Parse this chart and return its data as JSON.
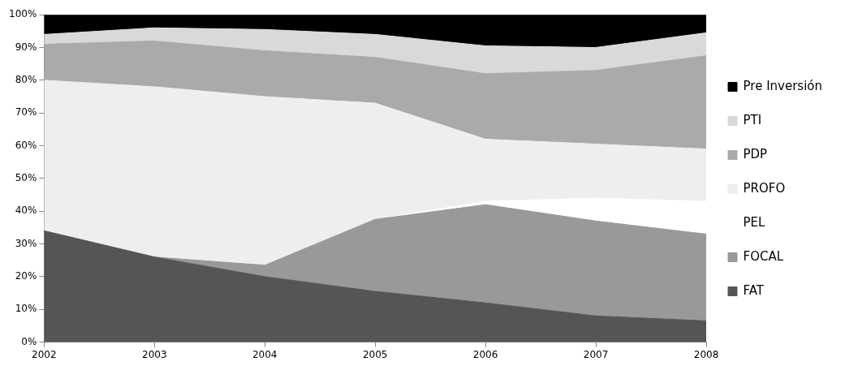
{
  "chart_data": {
    "type": "area",
    "stacked": true,
    "categories": [
      "2002",
      "2003",
      "2004",
      "2005",
      "2006",
      "2007",
      "2008"
    ],
    "series": [
      {
        "name": "FAT",
        "color": "#555555",
        "values": [
          34,
          26,
          20,
          15.5,
          12,
          8,
          6.5
        ]
      },
      {
        "name": "FOCAL",
        "color": "#999999",
        "values": [
          0,
          0,
          3.5,
          22,
          30,
          29,
          26.5
        ]
      },
      {
        "name": "PEL",
        "color": "#ffffff",
        "values": [
          0,
          0,
          0,
          0,
          1,
          7,
          10
        ]
      },
      {
        "name": "PROFO",
        "color": "#eeeeee",
        "values": [
          46,
          52,
          51.5,
          35.5,
          19,
          16.5,
          16
        ]
      },
      {
        "name": "PDP",
        "color": "#aaaaaa",
        "values": [
          11,
          14,
          14,
          14,
          20,
          22.5,
          28.5
        ]
      },
      {
        "name": "PTI",
        "color": "#d9d9d9",
        "values": [
          3,
          4,
          6.5,
          7,
          8.5,
          7,
          7
        ]
      },
      {
        "name": "Pre Inversión",
        "color": "#000000",
        "values": [
          6,
          4,
          4.5,
          6,
          9.5,
          10,
          5.5
        ]
      }
    ],
    "ylim": [
      0,
      100
    ],
    "yticks": [
      {
        "value": 0,
        "label": "0%"
      },
      {
        "value": 10,
        "label": "10%"
      },
      {
        "value": 20,
        "label": "20%"
      },
      {
        "value": 30,
        "label": "30%"
      },
      {
        "value": 40,
        "label": "40%"
      },
      {
        "value": 50,
        "label": "50%"
      },
      {
        "value": 60,
        "label": "60%"
      },
      {
        "value": 70,
        "label": "70%"
      },
      {
        "value": 80,
        "label": "80%"
      },
      {
        "value": 90,
        "label": "90%"
      },
      {
        "value": 100,
        "label": "100%"
      }
    ],
    "grid": false,
    "legend": "right"
  }
}
